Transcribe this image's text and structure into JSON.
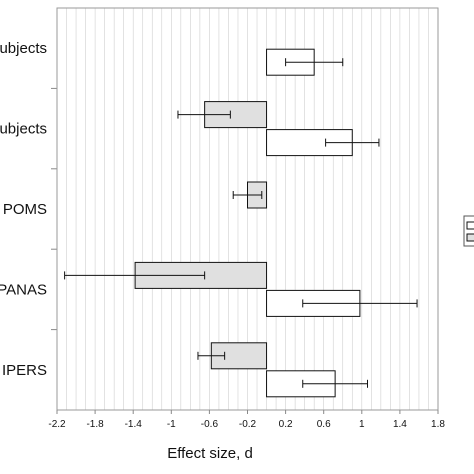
{
  "chart_data": {
    "type": "bar",
    "orientation": "horizontal",
    "title": "",
    "xlabel": "Effect size, d",
    "ylabel": "",
    "xlim": [
      -2.2,
      1.8
    ],
    "xticks": [
      -2.2,
      -1.8,
      -1.4,
      -1,
      -0.6,
      -0.2,
      0.2,
      0.6,
      1,
      1.4,
      1.8
    ],
    "grid": true,
    "categories": [
      "ubjects",
      "ubjects",
      "POMS",
      "PANAS",
      "IPERS"
    ],
    "series": [
      {
        "color": "#e0e0e0",
        "values": [
          null,
          -0.65,
          -0.2,
          -1.38,
          -0.58
        ],
        "err_low": [
          null,
          -0.93,
          -0.35,
          -2.12,
          -0.72
        ],
        "err_high": [
          null,
          -0.38,
          -0.05,
          -0.65,
          -0.44
        ]
      },
      {
        "color": "#ffffff",
        "values": [
          0.5,
          0.9,
          null,
          0.98,
          0.72
        ],
        "err_low": [
          0.2,
          0.62,
          null,
          0.38,
          0.38
        ],
        "err_high": [
          0.8,
          1.18,
          null,
          1.58,
          1.06
        ]
      }
    ],
    "legend": "right (partially visible)"
  }
}
